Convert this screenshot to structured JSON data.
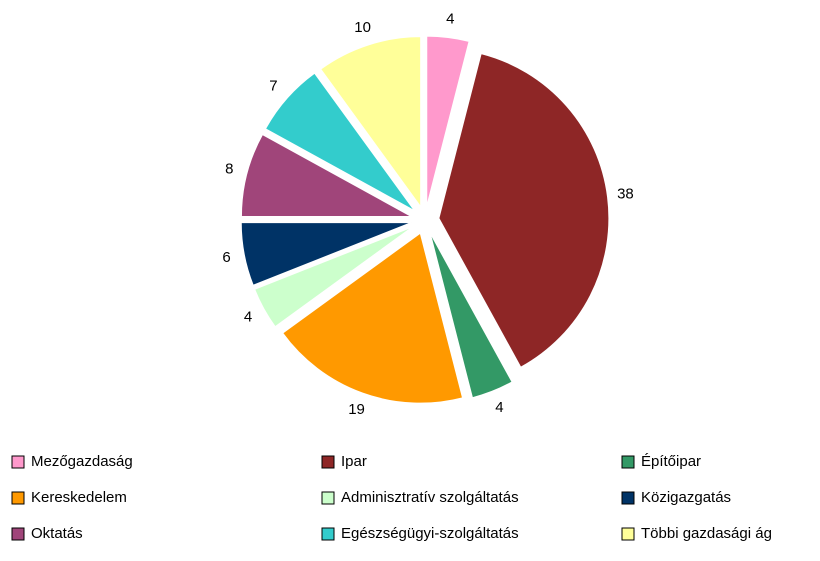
{
  "chart_data": {
    "type": "pie",
    "categories": [
      "Mezőgazdaság",
      "Ipar",
      "Építőipar",
      "Kereskedelem",
      "Adminisztratív szolgáltatás",
      "Közigazgatás",
      "Oktatás",
      "Egészségügyi-szolgáltatás",
      "Többi gazdasági ág"
    ],
    "values": [
      4,
      38,
      4,
      19,
      4,
      6,
      8,
      7,
      10
    ],
    "colors": [
      "#ff99cc",
      "#8e2626",
      "#339966",
      "#ff9900",
      "#ccffcc",
      "#003366",
      "#a0457a",
      "#33cccc",
      "#ffff99"
    ]
  }
}
